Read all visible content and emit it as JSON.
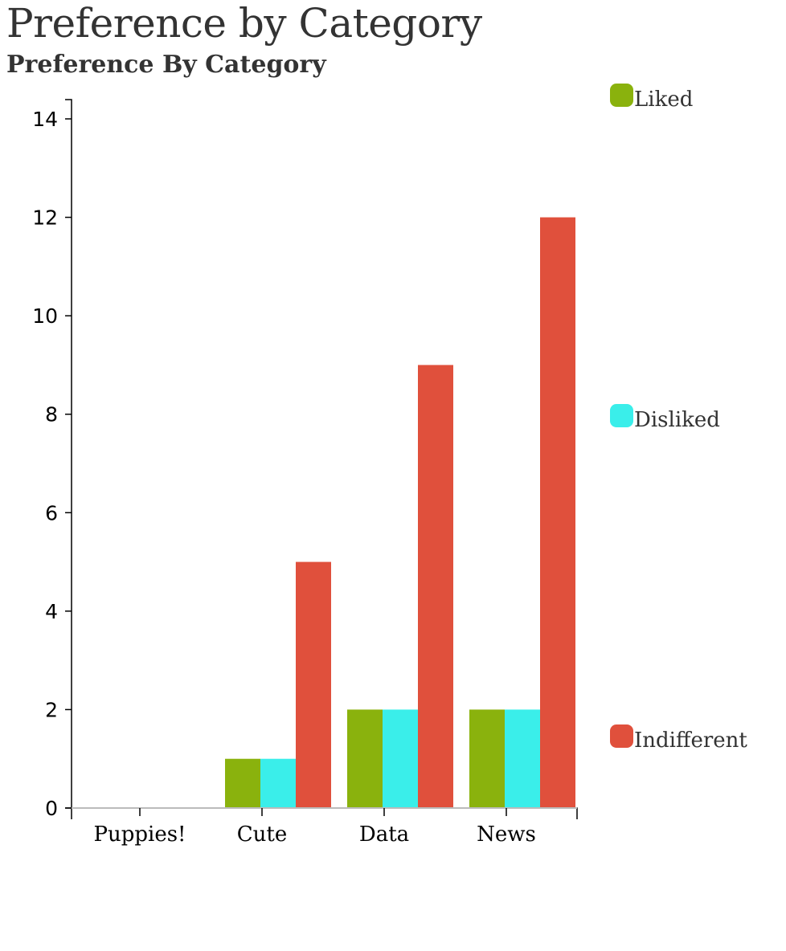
{
  "title": "Preference by Category",
  "subtitle": "Preference By Category",
  "chart_data": {
    "type": "bar",
    "categories": [
      "Puppies!",
      "Cute",
      "Data",
      "News"
    ],
    "series": [
      {
        "name": "Liked",
        "color": "#8ab20d",
        "values": [
          0,
          1,
          2,
          2
        ]
      },
      {
        "name": "Disliked",
        "color": "#3aeeea",
        "values": [
          0,
          1,
          2,
          2
        ]
      },
      {
        "name": "Indifferent",
        "color": "#e0503c",
        "values": [
          0,
          5,
          9,
          12
        ]
      }
    ],
    "ylim": [
      0,
      14
    ],
    "yticks": [
      0,
      2,
      4,
      6,
      8,
      10,
      12,
      14
    ],
    "grid": false,
    "legend_placement": "right"
  }
}
